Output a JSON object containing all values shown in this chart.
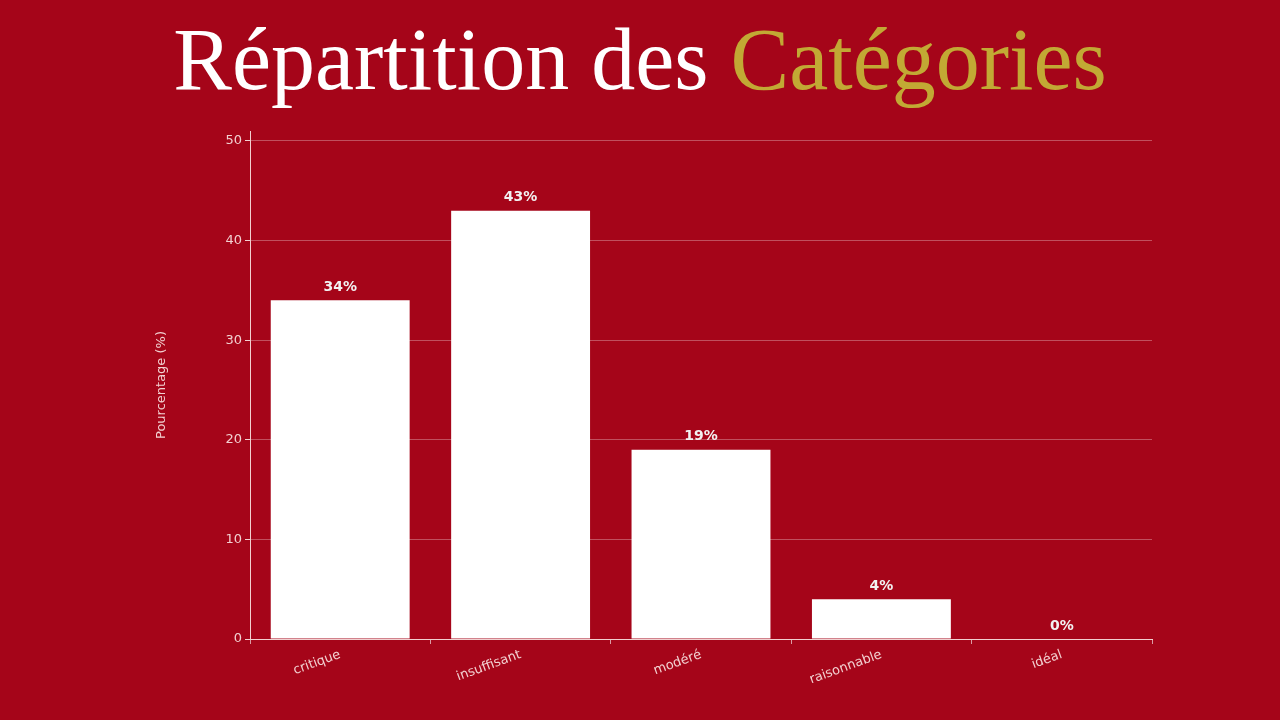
{
  "chart_data": {
    "type": "bar",
    "title": "Répartition des Catégories",
    "ylabel": "Pourcentage (%)",
    "categories": [
      "critique",
      "insuffisant",
      "modéré",
      "raisonnable",
      "idéal"
    ],
    "values": [
      34,
      43,
      19,
      4,
      0
    ],
    "value_labels": [
      "34%",
      "43%",
      "19%",
      "4%",
      "0%"
    ],
    "color": "#ffffff",
    "ylim": [
      0,
      51
    ],
    "yticks": [
      0,
      10,
      20,
      30,
      40,
      50
    ],
    "grid": "y",
    "legend": false
  }
}
